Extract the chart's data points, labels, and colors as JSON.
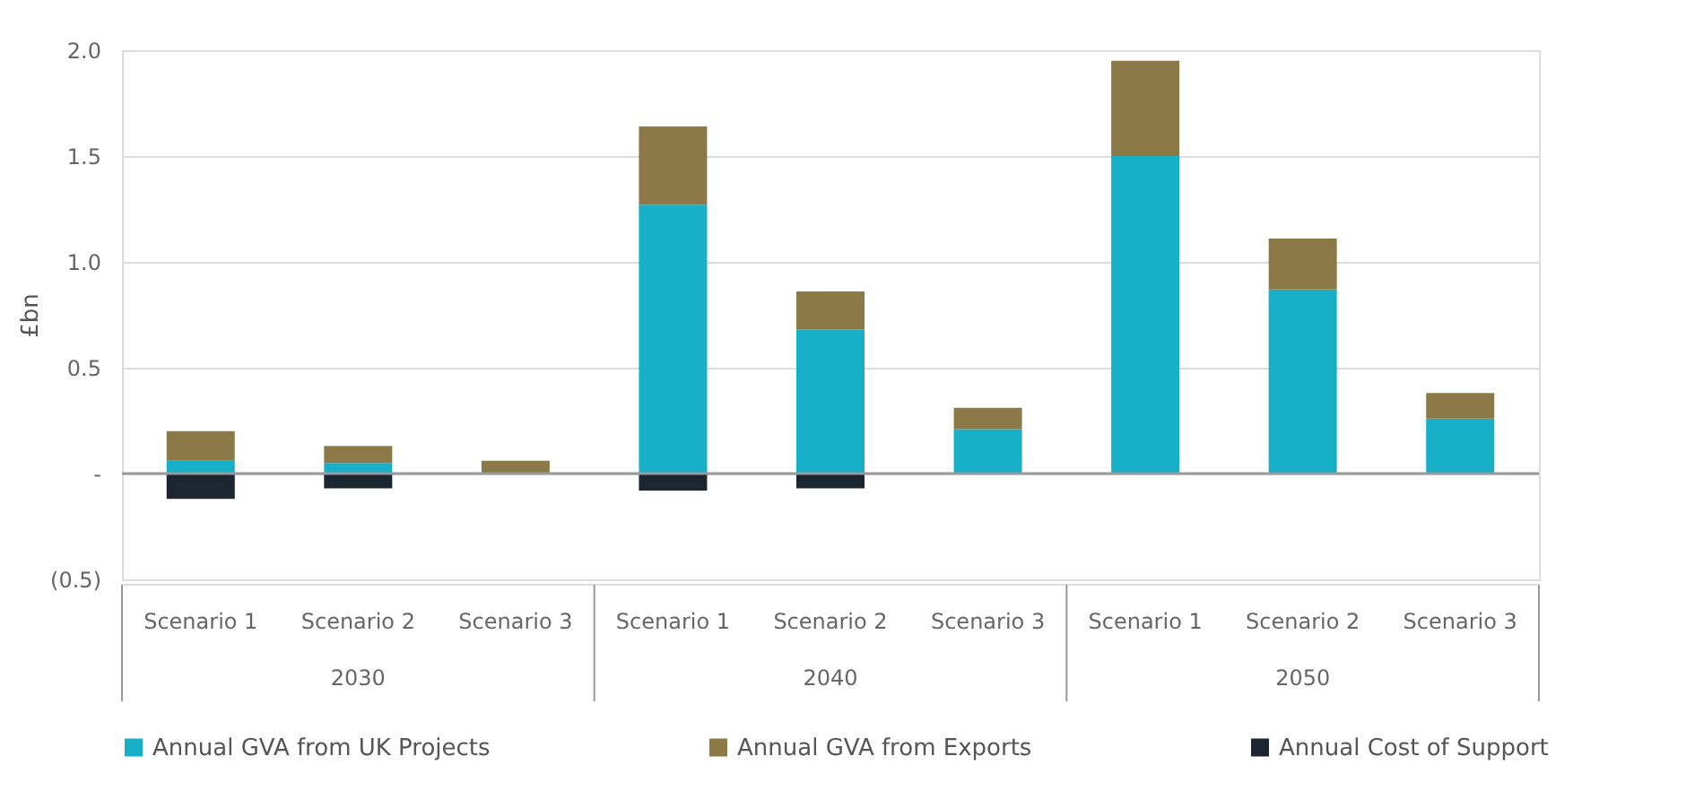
{
  "chart_data": {
    "type": "bar",
    "stacked": true,
    "ylabel": "£bn",
    "categories": [
      "Scenario 1",
      "Scenario 2",
      "Scenario 3",
      "Scenario 1",
      "Scenario 2",
      "Scenario 3",
      "Scenario 1",
      "Scenario 2",
      "Scenario 3"
    ],
    "annotations": [
      "2030",
      "2040",
      "2050"
    ],
    "series": [
      {
        "name": "Annual GVA from UK Projects",
        "color": "#17afc8",
        "values": [
          0.06,
          0.05,
          null,
          1.27,
          0.68,
          0.21,
          1.5,
          0.87,
          0.26
        ]
      },
      {
        "name": "Annual GVA from Exports",
        "color": "#8b7a48",
        "values": [
          0.14,
          0.08,
          0.06,
          0.37,
          0.18,
          0.1,
          0.45,
          0.24,
          0.12
        ]
      },
      {
        "name": "Annual Cost of Support",
        "color": "#1c2630",
        "values": [
          -0.12,
          -0.07,
          null,
          -0.08,
          -0.07,
          null,
          null,
          null,
          null
        ]
      }
    ],
    "ylim": [
      -0.5,
      2.0
    ],
    "yticks": [
      {
        "value": -0.5,
        "label": "(0.5)"
      },
      {
        "value": 0,
        "label": "-"
      },
      {
        "value": 0.5,
        "label": "0.5"
      },
      {
        "value": 1.0,
        "label": "1.0"
      },
      {
        "value": 1.5,
        "label": "1.5"
      },
      {
        "value": 2.0,
        "label": "2.0"
      }
    ],
    "grid": "y",
    "legend": "bottom"
  }
}
